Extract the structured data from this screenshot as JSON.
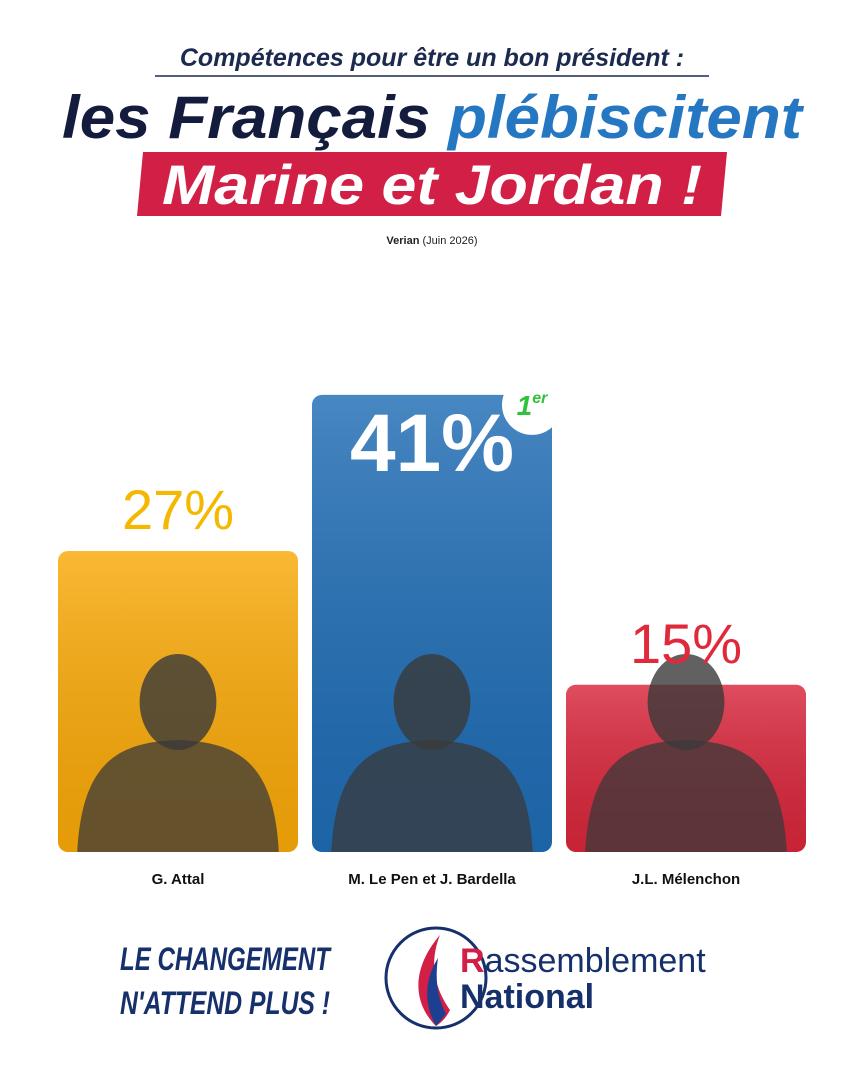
{
  "chart_data": {
    "type": "bar",
    "subtitle": "Compétences pour être un bon président :",
    "title": {
      "dark": "les Français",
      "blue": "plébiscitent"
    },
    "highlight": "Marine et Jordan !",
    "source": {
      "name": "Verian",
      "date": "(Juin 2026)"
    },
    "categories": [
      "G. Attal",
      "M. Le Pen et J. Bardella",
      "J.L. Mélenchon"
    ],
    "values": [
      27,
      41,
      15
    ],
    "value_labels": [
      "27%",
      "41%",
      "15%"
    ],
    "colors": [
      "#f9a908",
      "#1f6db5",
      "#d8263b"
    ],
    "value_label_colors": [
      "#f5b800",
      "#ffffff",
      "#e0293b"
    ],
    "rank_badge": {
      "number": "1",
      "suffix": "er"
    }
  },
  "footer": {
    "slogan": [
      "LE CHANGEMENT",
      "N'ATTEND PLUS !"
    ],
    "logo": {
      "initial": "R",
      "rest": "assemblement",
      "line2": "National"
    }
  }
}
